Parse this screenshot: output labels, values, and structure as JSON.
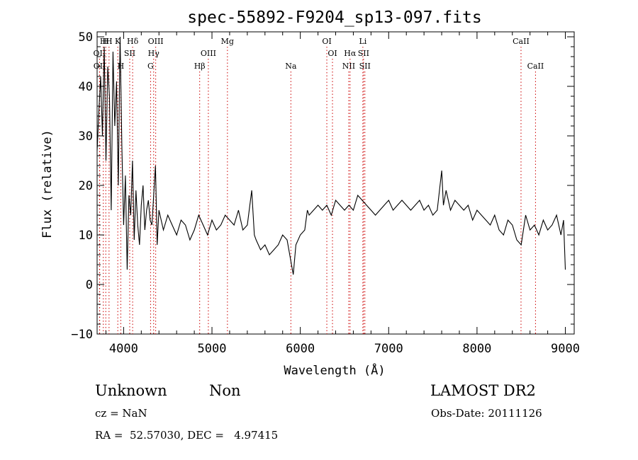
{
  "chart_data": {
    "type": "line",
    "title": "spec-55892-F9204_sp13-097.fits",
    "xlabel": "Wavelength (Å)",
    "ylabel": "Flux (relative)",
    "xlim": [
      3700,
      9100
    ],
    "ylim": [
      -10,
      51
    ],
    "xticks": [
      4000,
      5000,
      6000,
      7000,
      8000,
      9000
    ],
    "yticks": [
      -10,
      0,
      10,
      20,
      30,
      40,
      50
    ],
    "grid": false,
    "line_color": "#000000",
    "marker_color": "#cc0000",
    "series": [
      {
        "x": [
          3700,
          3720,
          3740,
          3760,
          3780,
          3800,
          3820,
          3840,
          3860,
          3880,
          3900,
          3920,
          3940,
          3960,
          3980,
          4000,
          4020,
          4040,
          4060,
          4080,
          4100,
          4120,
          4140,
          4160,
          4180,
          4200,
          4220,
          4240,
          4260,
          4280,
          4300,
          4320,
          4340,
          4360,
          4380,
          4400,
          4450,
          4500,
          4550,
          4600,
          4650,
          4700,
          4750,
          4800,
          4850,
          4900,
          4950,
          5000,
          5050,
          5100,
          5150,
          5200,
          5250,
          5300,
          5350,
          5400,
          5450,
          5480,
          5500,
          5550,
          5600,
          5650,
          5700,
          5750,
          5800,
          5850,
          5900,
          5920,
          5950,
          6000,
          6050,
          6080,
          6100,
          6150,
          6200,
          6250,
          6300,
          6350,
          6400,
          6450,
          6500,
          6550,
          6600,
          6650,
          6700,
          6750,
          6800,
          6850,
          6900,
          6950,
          7000,
          7050,
          7100,
          7150,
          7200,
          7250,
          7300,
          7350,
          7400,
          7450,
          7500,
          7550,
          7600,
          7620,
          7650,
          7700,
          7750,
          7800,
          7850,
          7900,
          7950,
          8000,
          8050,
          8100,
          8150,
          8200,
          8250,
          8300,
          8350,
          8400,
          8450,
          8500,
          8550,
          8600,
          8650,
          8700,
          8750,
          8800,
          8850,
          8900,
          8950,
          8980,
          9000
        ],
        "y": [
          27,
          35,
          42,
          30,
          48,
          25,
          44,
          38,
          15,
          47,
          32,
          41,
          20,
          50,
          28,
          12,
          22,
          3,
          18,
          14,
          25,
          9,
          19,
          12,
          8,
          16,
          20,
          11,
          15,
          17,
          13,
          12,
          18,
          24,
          8,
          15,
          11,
          14,
          12,
          10,
          13,
          12,
          9,
          11,
          14,
          12,
          10,
          13,
          11,
          12,
          14,
          13,
          12,
          15,
          11,
          12,
          19,
          10,
          9,
          7,
          8,
          6,
          7,
          8,
          10,
          9,
          4,
          2,
          8,
          10,
          11,
          15,
          14,
          15,
          16,
          15,
          16,
          14,
          17,
          16,
          15,
          16,
          15,
          18,
          17,
          16,
          15,
          14,
          15,
          16,
          17,
          15,
          16,
          17,
          16,
          15,
          16,
          17,
          15,
          16,
          14,
          15,
          23,
          16,
          19,
          15,
          17,
          16,
          15,
          16,
          13,
          15,
          14,
          13,
          12,
          14,
          11,
          10,
          13,
          12,
          9,
          8,
          14,
          11,
          12,
          10,
          13,
          11,
          12,
          14,
          10,
          13,
          3
        ]
      }
    ],
    "line_markers": [
      {
        "name": "OII",
        "x": 3727,
        "row": 2
      },
      {
        "name": "OII",
        "x": 3729,
        "row": 3
      },
      {
        "name": "H",
        "x": 3770,
        "row": 1
      },
      {
        "name": "H",
        "x": 3798,
        "row": 1
      },
      {
        "name": "H",
        "x": 3835,
        "row": 1
      },
      {
        "name": "K",
        "x": 3934,
        "row": 1
      },
      {
        "name": "H",
        "x": 3968,
        "row": 3
      },
      {
        "name": "SII",
        "x": 4069,
        "row": 2
      },
      {
        "name": "Hδ",
        "x": 4102,
        "row": 1
      },
      {
        "name": "OIII",
        "x": 4363,
        "row": 1
      },
      {
        "name": "Hγ",
        "x": 4340,
        "row": 2
      },
      {
        "name": "G",
        "x": 4305,
        "row": 3
      },
      {
        "name": "Hβ",
        "x": 4861,
        "row": 3
      },
      {
        "name": "OIII",
        "x": 4959,
        "row": 2
      },
      {
        "name": "Mg",
        "x": 5175,
        "row": 1
      },
      {
        "name": "Na",
        "x": 5893,
        "row": 3
      },
      {
        "name": "OI",
        "x": 6300,
        "row": 1
      },
      {
        "name": "OI",
        "x": 6364,
        "row": 2
      },
      {
        "name": "NII",
        "x": 6548,
        "row": 3
      },
      {
        "name": "Hα",
        "x": 6563,
        "row": 2
      },
      {
        "name": "Li",
        "x": 6708,
        "row": 1
      },
      {
        "name": "SII",
        "x": 6716,
        "row": 2
      },
      {
        "name": "SII",
        "x": 6731,
        "row": 3
      },
      {
        "name": "CaII",
        "x": 8498,
        "row": 1
      },
      {
        "name": "CaII",
        "x": 8662,
        "row": 3
      }
    ]
  },
  "info": {
    "class": "Unknown",
    "subclass": "Non",
    "survey": "LAMOST DR2",
    "cz": "cz = NaN",
    "obs_date": "Obs-Date: 20111126",
    "coords": "RA =  52.57030, DEC =   4.97415"
  }
}
